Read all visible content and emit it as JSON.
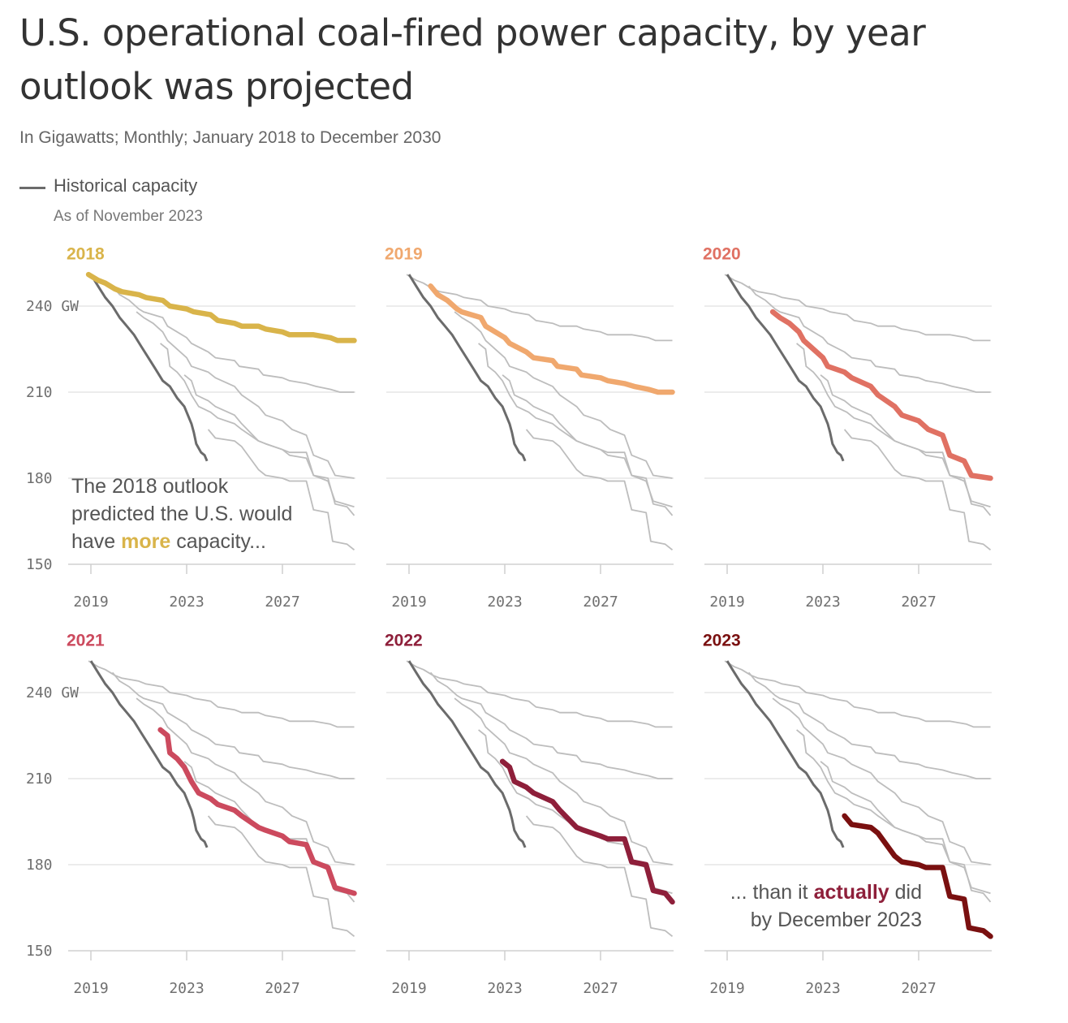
{
  "title": "U.S. operational coal-fired power capacity, by year outlook was projected",
  "subtitle": "In Gigawatts; Monthly; January 2018 to December 2030",
  "legend": {
    "label": "Historical capacity",
    "sublabel": "As of November 2023"
  },
  "colors": {
    "historical": "#6b6b6b",
    "context": "#bdbdbd",
    "grid": "#e6e6e6"
  },
  "annotations": {
    "first": {
      "line1": "The 2018 outlook",
      "line2": "predicted the U.S. would",
      "line3_pre": "have ",
      "line3_highlight": "more",
      "line3_post": " capacity..."
    },
    "last": {
      "line1_pre": "... than it ",
      "line1_highlight": "actually",
      "line1_post": " did",
      "line2": "by December 2023"
    }
  },
  "chart_data": {
    "type": "line",
    "unit": "GW",
    "y_ticks": [
      240,
      210,
      180,
      150
    ],
    "y_tick_suffix_first": " GW",
    "x_ticks": [
      2019,
      2023,
      2027
    ],
    "xlim": [
      2018,
      2031
    ],
    "ylim": [
      150,
      253
    ],
    "historical": {
      "name": "Historical capacity",
      "x": [
        2019.0,
        2019.3,
        2019.6,
        2019.9,
        2020.2,
        2020.5,
        2020.8,
        2021.1,
        2021.4,
        2021.7,
        2022.0,
        2022.3,
        2022.6,
        2022.9,
        2023.0,
        2023.2,
        2023.3,
        2023.4,
        2023.6,
        2023.75,
        2023.85
      ],
      "y": [
        251,
        247,
        243,
        240,
        236,
        233,
        230,
        226,
        222,
        218,
        214,
        212,
        208,
        205,
        203,
        199,
        196,
        192,
        189,
        188,
        186
      ]
    },
    "series": [
      {
        "name": "2018",
        "color": "#d9b44a",
        "x": [
          2018.9,
          2019.3,
          2019.6,
          2020.0,
          2020.3,
          2021.0,
          2021.3,
          2022.0,
          2022.3,
          2023.0,
          2023.3,
          2024.0,
          2024.3,
          2025.0,
          2025.3,
          2026.0,
          2026.3,
          2027.0,
          2027.3,
          2028.0,
          2028.3,
          2029.0,
          2029.3,
          2030.0
        ],
        "y": [
          251,
          249,
          248,
          246,
          245,
          244,
          243,
          242,
          240,
          239,
          238,
          237,
          235,
          234,
          233,
          233,
          232,
          231,
          230,
          230,
          230,
          229,
          228,
          228
        ]
      },
      {
        "name": "2019",
        "color": "#f0a86e",
        "x": [
          2019.9,
          2020.2,
          2020.6,
          2021.0,
          2021.2,
          2022.0,
          2022.2,
          2023.0,
          2023.2,
          2023.9,
          2024.2,
          2025.0,
          2025.2,
          2026.0,
          2026.2,
          2027.0,
          2027.3,
          2028.0,
          2028.4,
          2029.0,
          2029.4,
          2030.0
        ],
        "y": [
          247,
          244,
          242,
          239,
          238,
          236,
          233,
          229,
          227,
          224,
          222,
          221,
          219,
          218,
          216,
          215,
          214,
          213,
          212,
          211,
          210,
          210
        ]
      },
      {
        "name": "2020",
        "color": "#e07163",
        "x": [
          2020.9,
          2021.2,
          2021.6,
          2022.0,
          2022.2,
          2023.0,
          2023.2,
          2023.9,
          2024.2,
          2025.0,
          2025.3,
          2026.0,
          2026.3,
          2027.0,
          2027.4,
          2028.0,
          2028.3,
          2028.9,
          2029.2,
          2030.0
        ],
        "y": [
          238,
          236,
          234,
          231,
          228,
          222,
          219,
          217,
          215,
          212,
          209,
          205,
          202,
          200,
          197,
          195,
          188,
          186,
          181,
          180
        ]
      },
      {
        "name": "2021",
        "color": "#cc4a5e",
        "x": [
          2021.9,
          2022.2,
          2022.3,
          2022.6,
          2022.9,
          2023.2,
          2023.5,
          2024.0,
          2024.3,
          2025.0,
          2025.3,
          2026.0,
          2026.3,
          2027.0,
          2027.3,
          2028.0,
          2028.3,
          2028.9,
          2029.2,
          2030.0
        ],
        "y": [
          227,
          225,
          219,
          217,
          214,
          209,
          205,
          203,
          201,
          199,
          197,
          193,
          192,
          190,
          188,
          187,
          181,
          179,
          172,
          170
        ]
      },
      {
        "name": "2022",
        "color": "#8e1f3a",
        "x": [
          2022.9,
          2023.2,
          2023.4,
          2023.9,
          2024.2,
          2025.0,
          2025.3,
          2026.0,
          2026.3,
          2027.0,
          2027.3,
          2028.0,
          2028.3,
          2028.9,
          2029.2,
          2029.7,
          2030.0
        ],
        "y": [
          216,
          214,
          209,
          207,
          205,
          202,
          199,
          193,
          192,
          190,
          189,
          189,
          181,
          180,
          171,
          170,
          167
        ]
      },
      {
        "name": "2023",
        "color": "#7a1010",
        "x": [
          2023.9,
          2024.2,
          2025.0,
          2025.3,
          2026.0,
          2026.3,
          2027.0,
          2027.3,
          2028.0,
          2028.3,
          2028.9,
          2029.1,
          2029.7,
          2030.0
        ],
        "y": [
          197,
          194,
          193,
          191,
          183,
          181,
          180,
          179,
          179,
          169,
          168,
          158,
          157,
          155
        ]
      }
    ]
  },
  "panels": [
    {
      "label": "2018",
      "series_index": 0,
      "annotation": "first"
    },
    {
      "label": "2019",
      "series_index": 1
    },
    {
      "label": "2020",
      "series_index": 2
    },
    {
      "label": "2021",
      "series_index": 3
    },
    {
      "label": "2022",
      "series_index": 4
    },
    {
      "label": "2023",
      "series_index": 5,
      "annotation": "last"
    }
  ]
}
